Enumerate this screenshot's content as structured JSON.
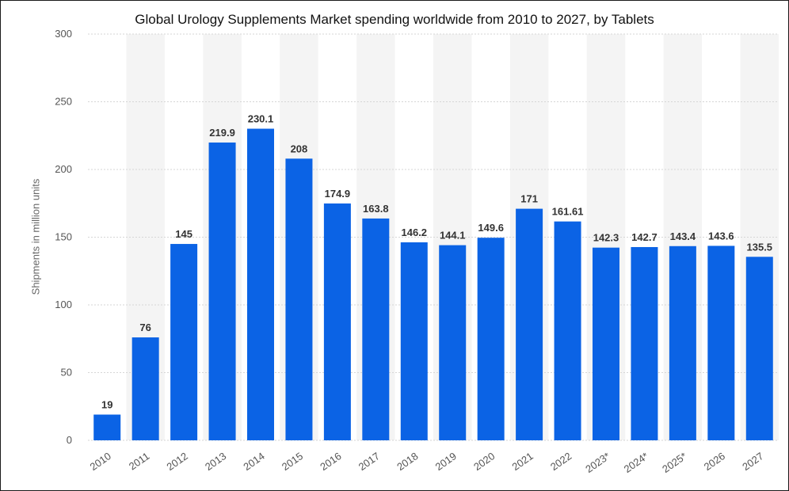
{
  "chart_data": {
    "type": "bar",
    "title": "Global Urology Supplements Market spending worldwide from 2010 to 2027, by Tablets",
    "xlabel": "",
    "ylabel": "Shipments in million units",
    "categories": [
      "2010",
      "2011",
      "2012",
      "2013",
      "2014",
      "2015",
      "2016",
      "2017",
      "2018",
      "2019",
      "2020",
      "2021",
      "2022",
      "2023*",
      "2024*",
      "2025*",
      "2026",
      "2027"
    ],
    "values": [
      19,
      76,
      145,
      219.9,
      230.1,
      208,
      174.9,
      163.8,
      146.2,
      144.1,
      149.6,
      171,
      161.61,
      142.3,
      142.7,
      143.4,
      143.6,
      135.5
    ],
    "value_labels": [
      "19",
      "76",
      "145",
      "219.9",
      "230.1",
      "208",
      "174.9",
      "163.8",
      "146.2",
      "144.1",
      "149.6",
      "171",
      "161.61",
      "142.3",
      "142.7",
      "143.4",
      "143.6",
      "135.5"
    ],
    "ylim": [
      0,
      300
    ],
    "yticks": [
      "0",
      "50",
      "100",
      "150",
      "200",
      "250",
      "300"
    ],
    "grid": true,
    "legend": "none",
    "colors": {
      "bar": "#0b63e5",
      "band": "#f4f4f4",
      "grid": "#d6d6d6"
    }
  }
}
